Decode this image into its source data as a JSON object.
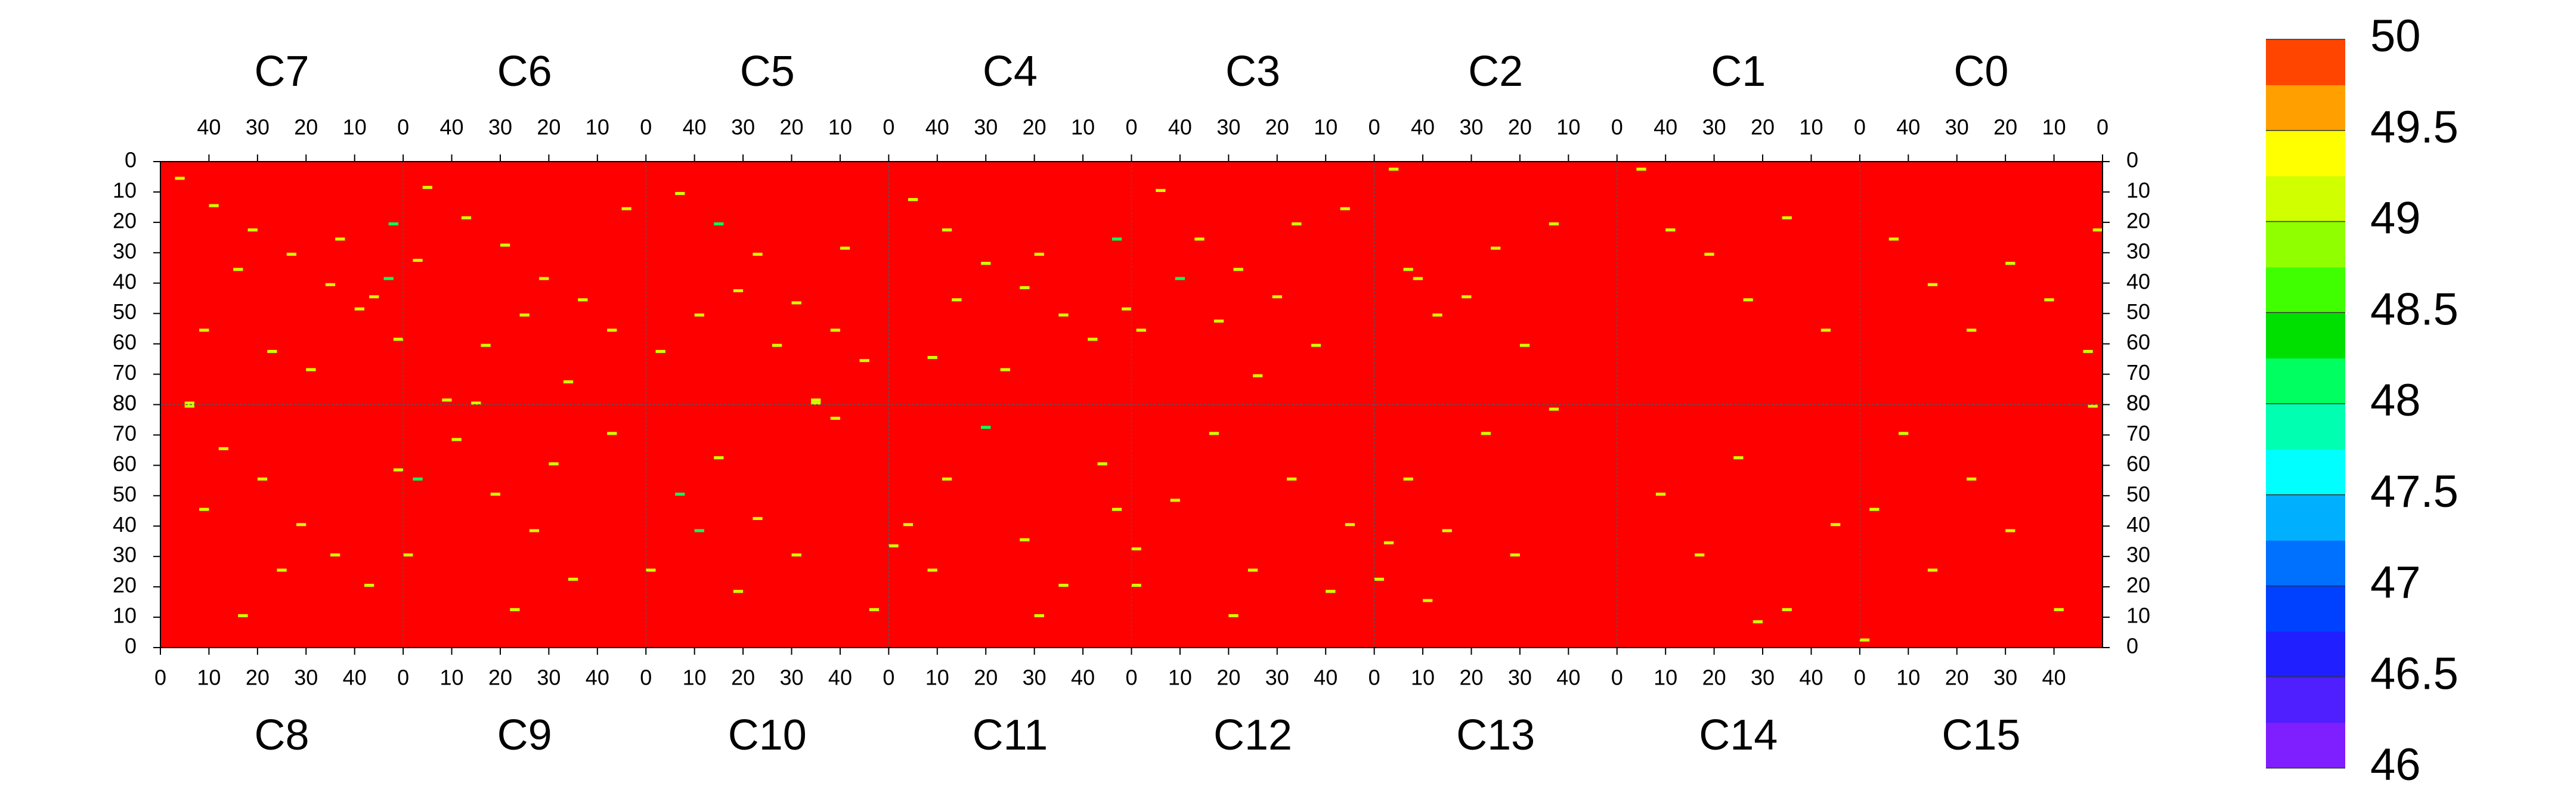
{
  "chart_data": {
    "type": "heatmap",
    "top_row": [
      "C7",
      "C6",
      "C5",
      "C4",
      "C3",
      "C2",
      "C1",
      "C0"
    ],
    "bottom_row": [
      "C8",
      "C9",
      "C10",
      "C11",
      "C12",
      "C13",
      "C14",
      "C15"
    ],
    "top_x_reversed": true,
    "xlim": [
      0,
      50
    ],
    "xticks": [
      0,
      10,
      20,
      30,
      40
    ],
    "ylim": [
      0,
      80
    ],
    "yticks": [
      0,
      10,
      20,
      30,
      40,
      50,
      60,
      70,
      80
    ],
    "base_value": 50,
    "zlim": [
      46,
      50
    ],
    "zticks": [
      46,
      46.5,
      47,
      47.5,
      48,
      48.5,
      49,
      49.5,
      50
    ],
    "colors": [
      "#7f1fff",
      "#4f1fff",
      "#1f1fff",
      "#0040ff",
      "#0070ff",
      "#00b0ff",
      "#00ffff",
      "#00ffb0",
      "#00ff60",
      "#00e000",
      "#40ff00",
      "#90ff00",
      "#d0ff00",
      "#ffff00",
      "#ffa000",
      "#ff4500"
    ],
    "top_cells": [
      [
        [
          45,
          5,
          49
        ],
        [
          38,
          14,
          49
        ],
        [
          30,
          22,
          49
        ],
        [
          22,
          30,
          49
        ],
        [
          14,
          40,
          49
        ],
        [
          8,
          48,
          49
        ],
        [
          40,
          55,
          49
        ],
        [
          26,
          62,
          49
        ],
        [
          18,
          68,
          49
        ],
        [
          43,
          80,
          49
        ],
        [
          33,
          35,
          49
        ],
        [
          12,
          25,
          49
        ],
        [
          1,
          20,
          48
        ],
        [
          2,
          38,
          48
        ],
        [
          0,
          58,
          49
        ],
        [
          5,
          44,
          49
        ]
      ],
      [
        [
          44,
          8,
          49
        ],
        [
          36,
          18,
          49
        ],
        [
          28,
          27,
          49
        ],
        [
          20,
          38,
          49
        ],
        [
          12,
          45,
          49
        ],
        [
          6,
          55,
          49
        ],
        [
          32,
          60,
          49
        ],
        [
          15,
          72,
          49
        ],
        [
          46,
          32,
          49
        ],
        [
          24,
          50,
          49
        ],
        [
          3,
          15,
          49
        ],
        [
          40,
          78,
          49
        ]
      ],
      [
        [
          42,
          10,
          49
        ],
        [
          34,
          20,
          48
        ],
        [
          26,
          30,
          49
        ],
        [
          18,
          46,
          49
        ],
        [
          10,
          55,
          49
        ],
        [
          4,
          65,
          49
        ],
        [
          30,
          42,
          49
        ],
        [
          22,
          60,
          49
        ],
        [
          38,
          50,
          49
        ],
        [
          8,
          28,
          49
        ],
        [
          14,
          78,
          49
        ],
        [
          46,
          62,
          49
        ]
      ],
      [
        [
          44,
          12,
          49
        ],
        [
          37,
          22,
          49
        ],
        [
          29,
          33,
          49
        ],
        [
          21,
          41,
          49
        ],
        [
          13,
          50,
          49
        ],
        [
          7,
          58,
          49
        ],
        [
          35,
          45,
          49
        ],
        [
          25,
          68,
          49
        ],
        [
          2,
          25,
          48
        ],
        [
          0,
          48,
          49
        ],
        [
          18,
          30,
          49
        ],
        [
          40,
          64,
          49
        ]
      ],
      [
        [
          43,
          9,
          49
        ],
        [
          35,
          25,
          49
        ],
        [
          27,
          35,
          49
        ],
        [
          19,
          44,
          49
        ],
        [
          11,
          60,
          49
        ],
        [
          5,
          15,
          49
        ],
        [
          31,
          52,
          49
        ],
        [
          23,
          70,
          49
        ],
        [
          39,
          38,
          48
        ],
        [
          15,
          20,
          49
        ],
        [
          47,
          55,
          49
        ]
      ],
      [
        [
          42,
          35,
          49
        ],
        [
          36,
          50,
          49
        ],
        [
          30,
          44,
          49
        ],
        [
          24,
          28,
          49
        ],
        [
          18,
          60,
          49
        ],
        [
          12,
          20,
          49
        ],
        [
          45,
          2,
          49
        ],
        [
          40,
          38,
          49
        ]
      ],
      [
        [
          38,
          22,
          49
        ],
        [
          30,
          30,
          49
        ],
        [
          22,
          45,
          49
        ],
        [
          14,
          18,
          49
        ],
        [
          6,
          55,
          49
        ],
        [
          44,
          2,
          49
        ]
      ],
      [
        [
          42,
          25,
          49
        ],
        [
          34,
          40,
          49
        ],
        [
          26,
          55,
          49
        ],
        [
          18,
          33,
          49
        ],
        [
          10,
          45,
          49
        ],
        [
          2,
          62,
          49
        ],
        [
          0,
          22,
          49
        ],
        [
          1,
          80,
          49
        ]
      ]
    ],
    "bottom_cells": [
      [
        [
          5,
          80,
          49
        ],
        [
          12,
          65,
          49
        ],
        [
          20,
          55,
          49
        ],
        [
          28,
          40,
          49
        ],
        [
          35,
          30,
          49
        ],
        [
          42,
          20,
          49
        ],
        [
          16,
          10,
          49
        ],
        [
          8,
          45,
          49
        ],
        [
          48,
          58,
          49
        ],
        [
          24,
          25,
          49
        ]
      ],
      [
        [
          2,
          55,
          48
        ],
        [
          10,
          68,
          49
        ],
        [
          18,
          50,
          49
        ],
        [
          26,
          38,
          49
        ],
        [
          34,
          22,
          49
        ],
        [
          42,
          70,
          49
        ],
        [
          22,
          12,
          49
        ],
        [
          0,
          30,
          49
        ],
        [
          30,
          60,
          49
        ],
        [
          14,
          80,
          49
        ]
      ],
      [
        [
          0,
          25,
          49
        ],
        [
          6,
          50,
          48
        ],
        [
          14,
          62,
          49
        ],
        [
          22,
          42,
          49
        ],
        [
          30,
          30,
          49
        ],
        [
          38,
          75,
          49
        ],
        [
          46,
          12,
          49
        ],
        [
          18,
          18,
          49
        ],
        [
          34,
          80,
          49
        ],
        [
          10,
          38,
          48
        ]
      ],
      [
        [
          3,
          40,
          49
        ],
        [
          11,
          55,
          49
        ],
        [
          19,
          72,
          48
        ],
        [
          27,
          35,
          49
        ],
        [
          35,
          20,
          49
        ],
        [
          43,
          60,
          49
        ],
        [
          8,
          25,
          49
        ],
        [
          30,
          10,
          49
        ],
        [
          0,
          33,
          49
        ],
        [
          46,
          45,
          49
        ]
      ],
      [
        [
          0,
          32,
          49
        ],
        [
          8,
          48,
          49
        ],
        [
          16,
          70,
          49
        ],
        [
          24,
          25,
          49
        ],
        [
          32,
          55,
          49
        ],
        [
          40,
          18,
          49
        ],
        [
          20,
          10,
          49
        ],
        [
          44,
          40,
          49
        ],
        [
          0,
          20,
          49
        ]
      ],
      [
        [
          0,
          22,
          49
        ],
        [
          6,
          55,
          49
        ],
        [
          14,
          38,
          49
        ],
        [
          22,
          70,
          49
        ],
        [
          28,
          30,
          49
        ],
        [
          10,
          15,
          49
        ],
        [
          36,
          78,
          49
        ],
        [
          2,
          34,
          49
        ]
      ],
      [
        [
          8,
          50,
          49
        ],
        [
          16,
          30,
          49
        ],
        [
          24,
          62,
          49
        ],
        [
          34,
          12,
          49
        ],
        [
          44,
          40,
          49
        ],
        [
          28,
          8,
          49
        ]
      ],
      [
        [
          0,
          2,
          49
        ],
        [
          2,
          45,
          49
        ],
        [
          14,
          25,
          49
        ],
        [
          22,
          55,
          49
        ],
        [
          30,
          38,
          49
        ],
        [
          40,
          12,
          49
        ],
        [
          8,
          70,
          49
        ]
      ]
    ]
  }
}
